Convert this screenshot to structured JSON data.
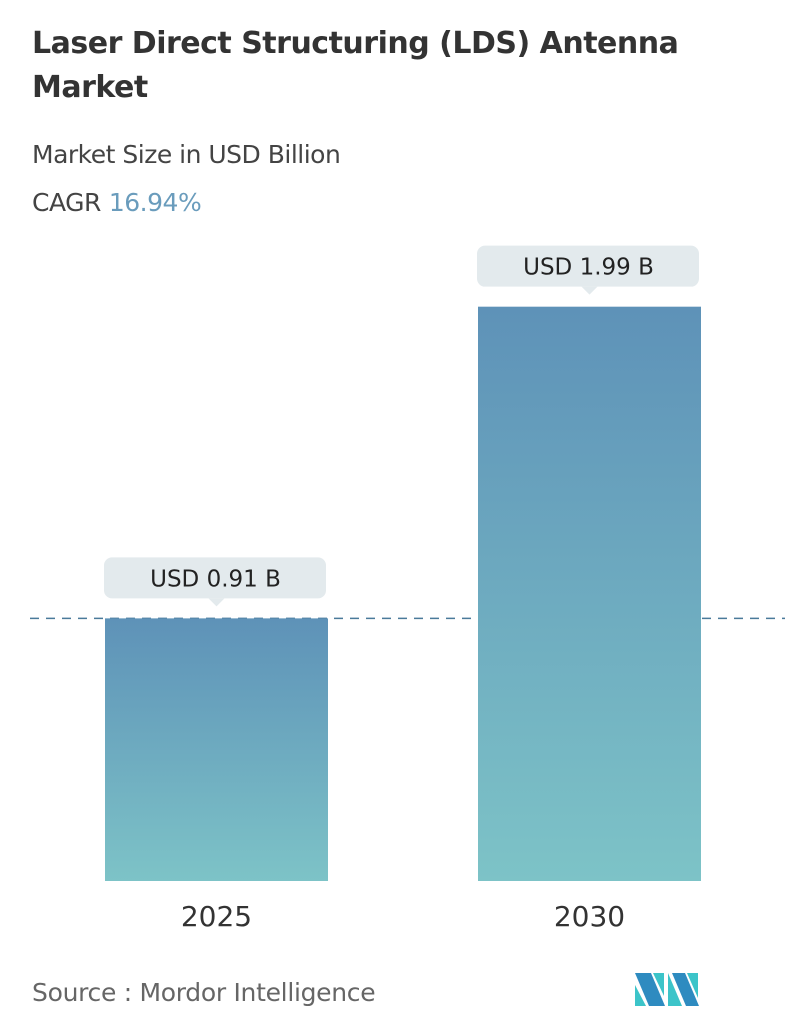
{
  "title": "Laser Direct Structuring (LDS) Antenna Market",
  "subtitle": "Market Size in USD Billion",
  "cagr_label": "CAGR",
  "cagr_value": "16.94%",
  "source": "Source :  Mordor Intelligence",
  "colors": {
    "bar_top": "#5e92b8",
    "bar_bottom": "#7dc3c7",
    "label_bg": "#e3eaed",
    "dash": "#4a7a9a"
  },
  "chart_data": {
    "type": "bar",
    "categories": [
      "2025",
      "2030"
    ],
    "values": [
      0.91,
      1.99
    ],
    "data_labels": [
      "USD 0.91 B",
      "USD 1.99 B"
    ],
    "reference_line": "dashed at 2025 value",
    "grid": false
  }
}
